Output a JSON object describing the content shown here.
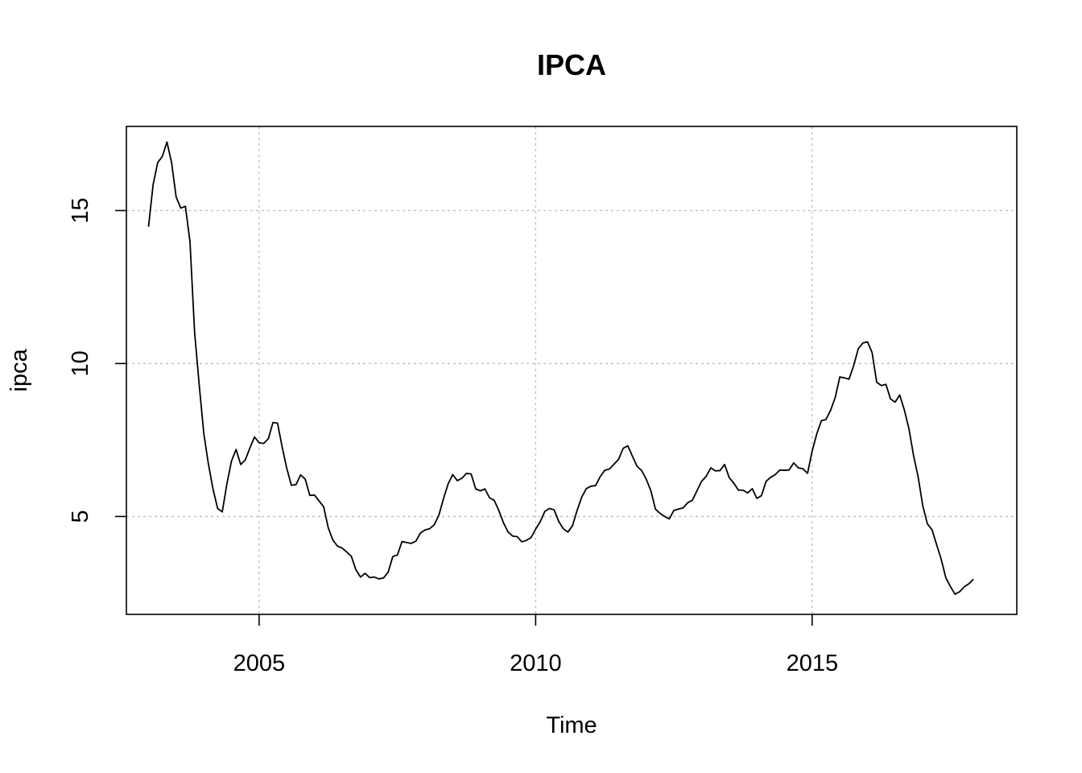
{
  "chart_data": {
    "type": "line",
    "title": "IPCA",
    "xlabel": "Time",
    "ylabel": "ipca",
    "xlim": [
      2002.6,
      2018.7
    ],
    "ylim": [
      1.8,
      17.75
    ],
    "x_ticks": [
      2005,
      2010,
      2015
    ],
    "x_tick_labels": [
      "2005",
      "2010",
      "2015"
    ],
    "y_ticks": [
      5,
      10,
      15
    ],
    "y_tick_labels": [
      "5",
      "10",
      "15"
    ],
    "grid": true,
    "x_start": 2003.0,
    "x_step": 0.0833333,
    "values": [
      14.47,
      15.85,
      16.57,
      16.77,
      17.24,
      16.57,
      15.44,
      15.08,
      15.14,
      13.98,
      11.02,
      9.3,
      7.71,
      6.71,
      5.89,
      5.26,
      5.15,
      6.06,
      6.81,
      7.19,
      6.7,
      6.85,
      7.24,
      7.6,
      7.41,
      7.39,
      7.54,
      8.07,
      8.05,
      7.27,
      6.57,
      6.02,
      6.04,
      6.36,
      6.22,
      5.69,
      5.7,
      5.51,
      5.32,
      4.63,
      4.23,
      4.03,
      3.97,
      3.84,
      3.7,
      3.26,
      3.02,
      3.14,
      3.0,
      3.02,
      2.96,
      2.99,
      3.18,
      3.69,
      3.74,
      4.18,
      4.15,
      4.12,
      4.19,
      4.46,
      4.56,
      4.6,
      4.73,
      5.04,
      5.58,
      6.06,
      6.37,
      6.17,
      6.25,
      6.41,
      6.39,
      5.9,
      5.84,
      5.9,
      5.61,
      5.53,
      5.2,
      4.8,
      4.5,
      4.36,
      4.34,
      4.17,
      4.22,
      4.31,
      4.59,
      4.83,
      5.17,
      5.26,
      5.22,
      4.84,
      4.6,
      4.49,
      4.7,
      5.2,
      5.63,
      5.91,
      5.99,
      6.01,
      6.3,
      6.51,
      6.55,
      6.71,
      6.87,
      7.23,
      7.31,
      6.97,
      6.64,
      6.5,
      6.22,
      5.84,
      5.24,
      5.1,
      5.0,
      4.92,
      5.2,
      5.24,
      5.28,
      5.45,
      5.53,
      5.84,
      6.15,
      6.31,
      6.59,
      6.49,
      6.5,
      6.7,
      6.27,
      6.09,
      5.86,
      5.86,
      5.77,
      5.91,
      5.59,
      5.68,
      6.15,
      6.28,
      6.37,
      6.52,
      6.51,
      6.52,
      6.75,
      6.59,
      6.56,
      6.41,
      7.14,
      7.7,
      8.13,
      8.17,
      8.47,
      8.89,
      9.56,
      9.53,
      9.49,
      9.93,
      10.48,
      10.67,
      10.71,
      10.36,
      9.39,
      9.28,
      9.32,
      8.84,
      8.74,
      8.97,
      8.48,
      7.87,
      6.99,
      6.29,
      5.35,
      4.76,
      4.57,
      4.08,
      3.6,
      3.0,
      2.71,
      2.46,
      2.54,
      2.7,
      2.8,
      2.95
    ]
  }
}
